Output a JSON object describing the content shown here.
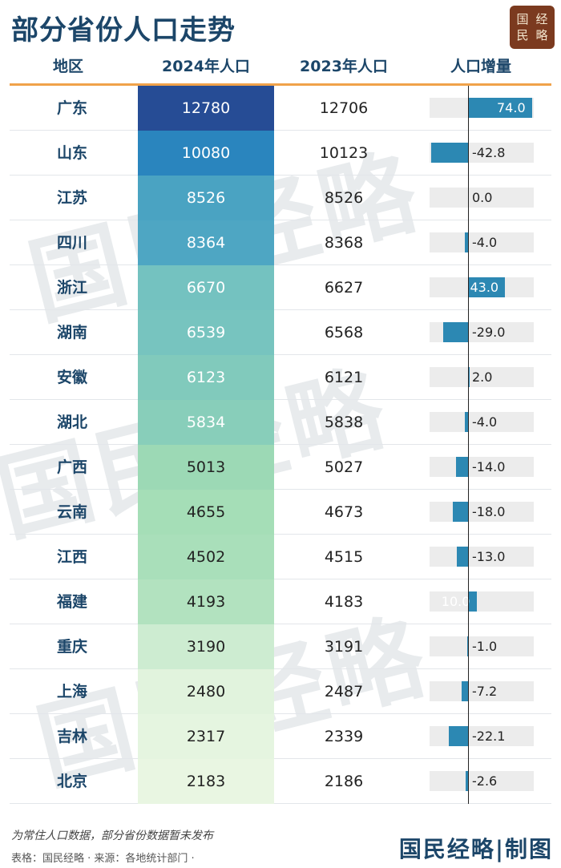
{
  "title": "部分省份人口走势",
  "logo": {
    "chars": [
      "经",
      "国",
      "略",
      "民"
    ]
  },
  "columns": {
    "region": "地区",
    "pop2024": "2024年人口",
    "pop2023": "2023年人口",
    "delta": "人口增量"
  },
  "watermark": "国民经略",
  "footnote": "为常住人口数据，部分省份数据暂未发布",
  "source": "表格：国民经略 · 来源：各地统计部门 ·",
  "footer_brand": "国民经略|制图",
  "colors": {
    "title": "#1c4669",
    "header_rule": "#f0a24a",
    "delta_bar": "#2c88b3",
    "delta_track": "#ececec",
    "logo_bg": "#7b3a1f"
  },
  "rows": [
    {
      "region": "广东",
      "v2024": "12780",
      "v2023": "12706",
      "delta": "74.0",
      "delta_value": 74.0
    },
    {
      "region": "山东",
      "v2024": "10080",
      "v2023": "10123",
      "delta": "-42.8",
      "delta_value": -42.8
    },
    {
      "region": "江苏",
      "v2024": "8526",
      "v2023": "8526",
      "delta": "0.0",
      "delta_value": 0.0
    },
    {
      "region": "四川",
      "v2024": "8364",
      "v2023": "8368",
      "delta": "-4.0",
      "delta_value": -4.0
    },
    {
      "region": "浙江",
      "v2024": "6670",
      "v2023": "6627",
      "delta": "43.0",
      "delta_value": 43.0
    },
    {
      "region": "湖南",
      "v2024": "6539",
      "v2023": "6568",
      "delta": "-29.0",
      "delta_value": -29.0
    },
    {
      "region": "安徽",
      "v2024": "6123",
      "v2023": "6121",
      "delta": "2.0",
      "delta_value": 2.0
    },
    {
      "region": "湖北",
      "v2024": "5834",
      "v2023": "5838",
      "delta": "-4.0",
      "delta_value": -4.0
    },
    {
      "region": "广西",
      "v2024": "5013",
      "v2023": "5027",
      "delta": "-14.0",
      "delta_value": -14.0
    },
    {
      "region": "云南",
      "v2024": "4655",
      "v2023": "4673",
      "delta": "-18.0",
      "delta_value": -18.0
    },
    {
      "region": "江西",
      "v2024": "4502",
      "v2023": "4515",
      "delta": "-13.0",
      "delta_value": -13.0
    },
    {
      "region": "福建",
      "v2024": "4193",
      "v2023": "4183",
      "delta": "10.0",
      "delta_value": 10.0
    },
    {
      "region": "重庆",
      "v2024": "3190",
      "v2023": "3191",
      "delta": "-1.0",
      "delta_value": -1.0
    },
    {
      "region": "上海",
      "v2024": "2480",
      "v2023": "2487",
      "delta": "-7.2",
      "delta_value": -7.2
    },
    {
      "region": "吉林",
      "v2024": "2317",
      "v2023": "2339",
      "delta": "-22.1",
      "delta_value": -22.1
    },
    {
      "region": "北京",
      "v2024": "2183",
      "v2023": "2186",
      "delta": "-2.6",
      "delta_value": -2.6
    }
  ],
  "chart_data": {
    "type": "table",
    "title": "部分省份人口走势",
    "columns": [
      "地区",
      "2024年人口",
      "2023年人口",
      "人口增量"
    ],
    "categories": [
      "广东",
      "山东",
      "江苏",
      "四川",
      "浙江",
      "湖南",
      "安徽",
      "湖北",
      "广西",
      "云南",
      "江西",
      "福建",
      "重庆",
      "上海",
      "吉林",
      "北京"
    ],
    "series": [
      {
        "name": "2024年人口",
        "values": [
          12780,
          10080,
          8526,
          8364,
          6670,
          6539,
          6123,
          5834,
          5013,
          4655,
          4502,
          4193,
          3190,
          2480,
          2317,
          2183
        ]
      },
      {
        "name": "2023年人口",
        "values": [
          12706,
          10123,
          8526,
          8368,
          6627,
          6568,
          6121,
          5838,
          5027,
          4673,
          4515,
          4183,
          3191,
          2487,
          2339,
          2186
        ]
      },
      {
        "name": "人口增量",
        "values": [
          74.0,
          -42.8,
          0.0,
          -4.0,
          43.0,
          -29.0,
          2.0,
          -4.0,
          -14.0,
          -18.0,
          -13.0,
          10.0,
          -1.0,
          -7.2,
          -22.1,
          -2.6
        ]
      }
    ],
    "delta_range": [
      -48,
      80
    ]
  }
}
